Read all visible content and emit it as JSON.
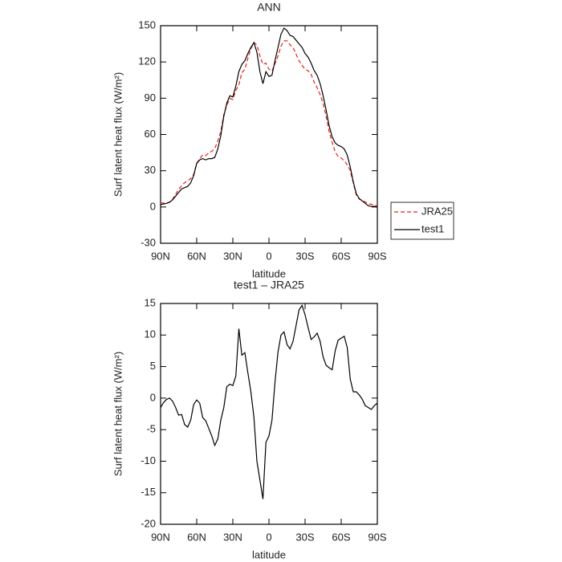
{
  "chart_data": [
    {
      "type": "line",
      "title": "ANN",
      "xlabel": "latitude",
      "ylabel": "Surf latent heat flux (W/m²)",
      "x": [
        90,
        87.5,
        85,
        82.5,
        80,
        77.5,
        75,
        72.5,
        70,
        67.5,
        65,
        62.5,
        60,
        57.5,
        55,
        52.5,
        50,
        47.5,
        45,
        42.5,
        40,
        37.5,
        35,
        32.5,
        30,
        27.5,
        25,
        22.5,
        20,
        17.5,
        15,
        12.5,
        10,
        7.5,
        5,
        2.5,
        0,
        -2.5,
        -5,
        -7.5,
        -10,
        -12.5,
        -15,
        -17.5,
        -20,
        -22.5,
        -25,
        -27.5,
        -30,
        -32.5,
        -35,
        -37.5,
        -40,
        -42.5,
        -45,
        -47.5,
        -50,
        -52.5,
        -55,
        -57.5,
        -60,
        -62.5,
        -65,
        -67.5,
        -70,
        -72.5,
        -75,
        -77.5,
        -80,
        -82.5,
        -85,
        -87.5,
        -90
      ],
      "xlim": [
        90,
        -90
      ],
      "xticks": [
        {
          "value": 90,
          "label": "90N"
        },
        {
          "value": 60,
          "label": "60N"
        },
        {
          "value": 30,
          "label": "30N"
        },
        0,
        {
          "value": -30,
          "label": "30S"
        },
        {
          "value": -60,
          "label": "60S"
        },
        {
          "value": -90,
          "label": "90S"
        }
      ],
      "ylim": [
        -30,
        150
      ],
      "yticks": [
        -30,
        0,
        30,
        60,
        90,
        120,
        150
      ],
      "legend": "outside-right",
      "series": [
        {
          "name": "JRA25",
          "color": "#e8201c",
          "style": "dashed",
          "values": [
            3.5,
            3.2,
            3.2,
            4,
            6.5,
            10.5,
            14.7,
            17.6,
            20.2,
            21.6,
            23.5,
            27,
            36.3,
            39.8,
            43.1,
            42.6,
            44.8,
            46,
            48.5,
            54.5,
            62.5,
            76.5,
            84.2,
            89.8,
            89,
            96.5,
            101,
            111.2,
            113.8,
            123,
            131,
            136,
            134,
            125,
            118,
            119,
            114,
            112.5,
            118.5,
            124.7,
            133,
            137.5,
            137.5,
            134.2,
            132,
            126.5,
            121,
            117.3,
            113.8,
            112.8,
            109.7,
            103.3,
            98.7,
            93,
            85.5,
            74.8,
            62.2,
            53.5,
            45.5,
            41.8,
            40.5,
            38.2,
            35,
            30,
            20,
            10,
            6.5,
            5.2,
            4.2,
            2.5,
            2.3,
            1.7,
            0.8
          ]
        },
        {
          "name": "test1",
          "color": "#000000",
          "style": "solid",
          "values": [
            2,
            2.5,
            3,
            4,
            6,
            9,
            12,
            15,
            16,
            17,
            20,
            26,
            36,
            39,
            40,
            39,
            40,
            40,
            41,
            48,
            59,
            75,
            86,
            92,
            91,
            100,
            112,
            118,
            121,
            127,
            132,
            136,
            128,
            112,
            102,
            112,
            108,
            109,
            121,
            132,
            143,
            148,
            146,
            142,
            141,
            138,
            135,
            132,
            127,
            124,
            119,
            113,
            109,
            102,
            92,
            80,
            67,
            58,
            53,
            51,
            50,
            48,
            43,
            33,
            21,
            11,
            7,
            5,
            3,
            1,
            0.5,
            0.5,
            0
          ]
        }
      ]
    },
    {
      "type": "line",
      "title": "test1 – JRA25",
      "xlabel": "latitude",
      "ylabel": "Surf latent heat flux (W/m²)",
      "x": [
        90,
        87.5,
        85,
        82.5,
        80,
        77.5,
        75,
        72.5,
        70,
        67.5,
        65,
        62.5,
        60,
        57.5,
        55,
        52.5,
        50,
        47.5,
        45,
        42.5,
        40,
        37.5,
        35,
        32.5,
        30,
        27.5,
        25,
        22.5,
        20,
        17.5,
        15,
        12.5,
        10,
        7.5,
        5,
        2.5,
        0,
        -2.5,
        -5,
        -7.5,
        -10,
        -12.5,
        -15,
        -17.5,
        -20,
        -22.5,
        -25,
        -27.5,
        -30,
        -32.5,
        -35,
        -37.5,
        -40,
        -42.5,
        -45,
        -47.5,
        -50,
        -52.5,
        -55,
        -57.5,
        -60,
        -62.5,
        -65,
        -67.5,
        -70,
        -72.5,
        -75,
        -77.5,
        -80,
        -82.5,
        -85,
        -87.5,
        -90
      ],
      "xlim": [
        90,
        -90
      ],
      "xticks": [
        {
          "value": 90,
          "label": "90N"
        },
        {
          "value": 60,
          "label": "60N"
        },
        {
          "value": 30,
          "label": "30N"
        },
        0,
        {
          "value": -30,
          "label": "30S"
        },
        {
          "value": -60,
          "label": "60S"
        },
        {
          "value": -90,
          "label": "90S"
        }
      ],
      "ylim": [
        -20,
        15
      ],
      "yticks": [
        -20,
        -15,
        -10,
        -5,
        0,
        5,
        10,
        15
      ],
      "color": "#000000",
      "values": [
        -1.5,
        -0.7,
        -0.2,
        0,
        -0.5,
        -1.5,
        -2.7,
        -2.6,
        -4.2,
        -4.6,
        -3.5,
        -1,
        -0.3,
        -0.8,
        -3.1,
        -3.6,
        -4.8,
        -6,
        -7.5,
        -6.5,
        -3.5,
        -1.5,
        1.8,
        2.2,
        2,
        3.5,
        11,
        6.8,
        7.2,
        4,
        1,
        -3,
        -10,
        -13,
        -16,
        -7,
        -6,
        -3.5,
        2.5,
        7.3,
        10,
        10.5,
        8.5,
        7.8,
        9,
        11.5,
        14,
        14.7,
        13.2,
        11.2,
        9.3,
        9.7,
        10.3,
        9,
        6.5,
        5.2,
        4.8,
        4.5,
        7.5,
        9.2,
        9.5,
        9.8,
        8,
        3,
        1,
        1,
        0.5,
        -0.2,
        -1.2,
        -1.5,
        -1.8,
        -1.2,
        -0.8
      ]
    }
  ]
}
